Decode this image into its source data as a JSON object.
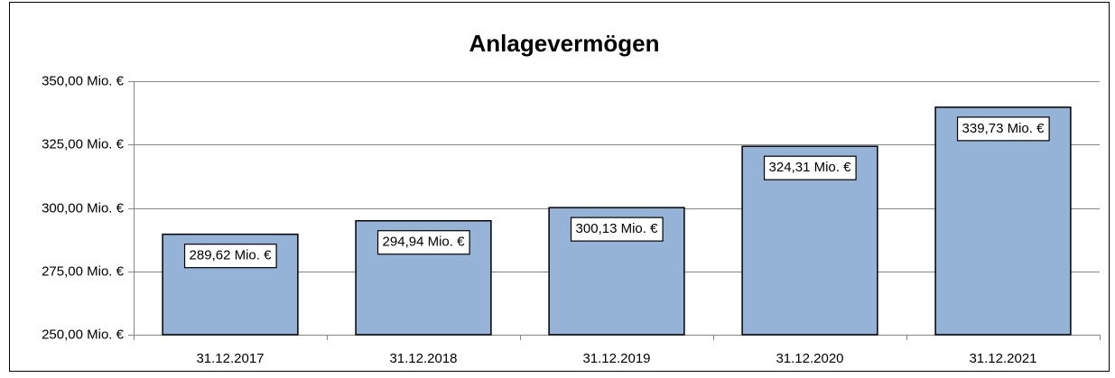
{
  "chart_data": {
    "type": "bar",
    "title": "Anlagevermögen",
    "categories": [
      "31.12.2017",
      "31.12.2018",
      "31.12.2019",
      "31.12.2020",
      "31.12.2021"
    ],
    "values": [
      289.62,
      294.94,
      300.13,
      324.31,
      339.73
    ],
    "value_labels": [
      "289,62 Mio. €",
      "294,94 Mio. €",
      "300,13 Mio. €",
      "324,31 Mio. €",
      "339,73 Mio. €"
    ],
    "color": "#95b3d7",
    "ylim": [
      250,
      350
    ],
    "yticks": [
      {
        "value": 250,
        "label": "250,00 Mio. €"
      },
      {
        "value": 275,
        "label": "275,00 Mio. €"
      },
      {
        "value": 300,
        "label": "300,00 Mio. €"
      },
      {
        "value": 325,
        "label": "325,00 Mio. €"
      },
      {
        "value": 350,
        "label": "350,00 Mio. €"
      }
    ],
    "grid": true
  }
}
